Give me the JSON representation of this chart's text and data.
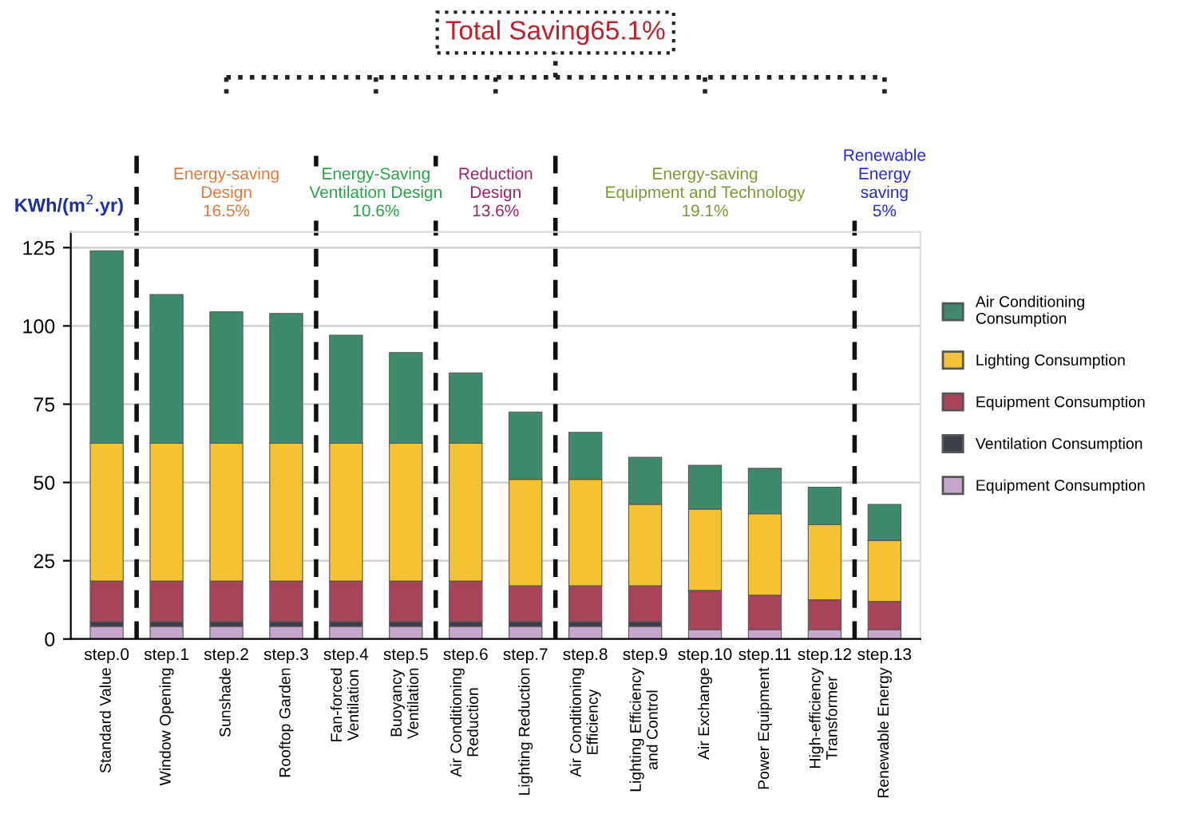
{
  "chart_data": {
    "type": "bar",
    "stacked": true,
    "title": "Total Saving65.1%",
    "ylabel": "KWh/(m$^{2}$.yr)",
    "categories": [
      "step.0",
      "step.1",
      "step.2",
      "step.3",
      "step.4",
      "step.5",
      "step.6",
      "step.7",
      "step.8",
      "step.9",
      "step.10",
      "step.11",
      "step.12",
      "step.13"
    ],
    "series": [
      {
        "name": "Equipment Consumption",
        "color": "#c6a6cc",
        "values": [
          4,
          4,
          4,
          4,
          4,
          4,
          4,
          4,
          4,
          4,
          3,
          3,
          3,
          3
        ]
      },
      {
        "name": "Ventilation Consumption",
        "color": "#3a3f4a",
        "values": [
          1.5,
          1.5,
          1.5,
          1.5,
          1.5,
          1.5,
          1.5,
          1.5,
          1.5,
          1.5,
          0,
          0,
          0,
          0
        ]
      },
      {
        "name": "Equipment Consumption",
        "color": "#a84458",
        "values": [
          13,
          13,
          13,
          13,
          13,
          13,
          13,
          11.5,
          11.5,
          11.5,
          12.5,
          11,
          9.5,
          9
        ]
      },
      {
        "name": "Lighting Consumption",
        "color": "#f5c232",
        "values": [
          44,
          44,
          44,
          44,
          44,
          44,
          44,
          34,
          34,
          26,
          26,
          26,
          24,
          19.5
        ]
      },
      {
        "name": "Air Conditioning\nConsumption",
        "color": "#3e8a6a",
        "values": [
          61.5,
          47.5,
          42,
          41.5,
          34.5,
          29,
          22.5,
          21.5,
          15,
          15,
          14,
          14.5,
          12,
          11.5
        ]
      }
    ],
    "ylim": [
      0,
      130
    ],
    "yticks": [
      0,
      25,
      50,
      75,
      100,
      125
    ],
    "grid": "y",
    "legend": "right",
    "annotations": [
      "Energy-saving\nDesign\n16.5%",
      "Energy-Saving\nVentilation Design\n10.6%",
      "Reduction\nDesign\n13.6%",
      "Energy-saving\nEquipment and Technology\n19.1%",
      "Renewable\nEnergy\nsaving\n5%",
      "Standard Value",
      "Window Opening",
      "Sunshade",
      "Rooftop Garden",
      "Fan-forced\nVentilation",
      "Buoyancy\nVentilation",
      "Air Conditioning\nReduction",
      "Lighting Reduction",
      "Air Conditioning\nEfficiency",
      "Lighting Efficiency\nand Control",
      "Air Exchange",
      "Power Equipment",
      "High-efficiency\nTransformer",
      "Renewable Energy"
    ]
  }
}
